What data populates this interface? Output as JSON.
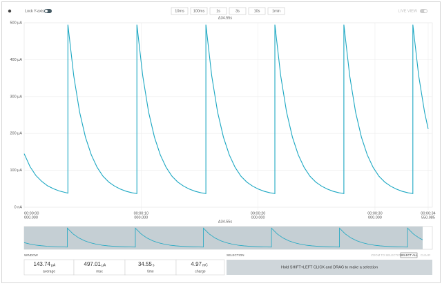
{
  "toolbar": {
    "lock_label": "Lock Y-axis",
    "buttons": [
      "10ms",
      "100ms",
      "1s",
      "3s",
      "10s",
      "1min"
    ],
    "live_view": "LIVE VIEW"
  },
  "chart": {
    "type": "line",
    "annotation": "Δ34.55s",
    "xlim": [
      0,
      34.550985
    ],
    "ylim": [
      0,
      500
    ],
    "grid": true,
    "yticks": [
      {
        "value": 0,
        "label": "0 nA"
      },
      {
        "value": 100,
        "label": "100 µA"
      },
      {
        "value": 200,
        "label": "200 µA"
      },
      {
        "value": 300,
        "label": "300 µA"
      },
      {
        "value": 400,
        "label": "400 µA"
      },
      {
        "value": 500,
        "label": "500 µA"
      }
    ],
    "xticks": [
      {
        "value": 0,
        "label": "00:00:00",
        "sublabel": "000.000"
      },
      {
        "value": 10,
        "label": "00:00:10",
        "sublabel": "000.000"
      },
      {
        "value": 20,
        "label": "00:00:20",
        "sublabel": "000.000"
      },
      {
        "value": 30,
        "label": "00:00:30",
        "sublabel": "000.000"
      },
      {
        "value": 34.550985,
        "label": "00:00:34",
        "sublabel": "550.985"
      }
    ],
    "x": [
      0,
      0.5,
      1,
      1.5,
      2,
      2.5,
      3,
      3.5,
      3.74,
      3.74,
      4.24,
      4.74,
      5.24,
      5.74,
      6.24,
      6.74,
      7.24,
      7.74,
      8.24,
      8.74,
      9.24,
      9.64,
      9.64,
      10.14,
      10.64,
      11.14,
      11.64,
      12.14,
      12.64,
      13.14,
      13.64,
      14.14,
      14.64,
      15.14,
      15.54,
      15.54,
      16.04,
      16.54,
      17.04,
      17.54,
      18.04,
      18.54,
      19.04,
      19.54,
      20.04,
      20.54,
      21.04,
      21.44,
      21.44,
      21.94,
      22.44,
      22.94,
      23.44,
      23.94,
      24.44,
      24.94,
      25.44,
      25.94,
      26.44,
      26.94,
      27.34,
      27.34,
      27.84,
      28.34,
      28.84,
      29.34,
      29.84,
      30.34,
      30.84,
      31.34,
      31.84,
      32.34,
      32.84,
      33.24,
      33.24,
      33.74,
      34.24,
      34.55
    ],
    "series": [
      {
        "color": "#1ba7c2",
        "values": [
          145,
          110,
          86,
          70,
          58,
          50,
          44,
          40,
          38,
          495,
          356,
          258,
          190,
          142,
          108,
          84,
          68,
          57,
          49,
          43,
          39,
          37,
          495,
          356,
          258,
          190,
          142,
          108,
          84,
          68,
          57,
          49,
          43,
          39,
          37,
          495,
          356,
          258,
          190,
          142,
          108,
          84,
          68,
          57,
          49,
          43,
          39,
          37,
          495,
          356,
          258,
          190,
          142,
          108,
          84,
          68,
          57,
          49,
          43,
          39,
          37,
          495,
          356,
          258,
          190,
          142,
          108,
          84,
          68,
          57,
          49,
          43,
          39,
          37,
          495,
          356,
          258,
          212
        ]
      }
    ]
  },
  "minimap": {
    "annotation": "Δ34.55s"
  },
  "window": {
    "title": "WINDOW",
    "stats": [
      {
        "value": "143.74",
        "unit": "µA",
        "label": "average"
      },
      {
        "value": "497.01",
        "unit": "µA",
        "label": "max"
      },
      {
        "value": "34.55",
        "unit": "s",
        "label": "time"
      },
      {
        "value": "4.97",
        "unit": "mC",
        "label": "charge"
      }
    ]
  },
  "selection": {
    "title": "SELECTION",
    "buttons": [
      "ZOOM TO SELECTION",
      "SELECT ALL",
      "CLEAR"
    ],
    "hint": "Hold SHIFT+LEFT CLICK and DRAG to make a selection"
  }
}
